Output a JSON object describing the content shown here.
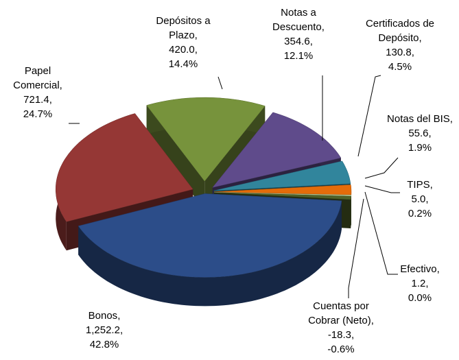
{
  "chart_data": {
    "type": "pie",
    "categories": [
      "Depósitos a Plazo",
      "Notas a Descuento",
      "Certificados de Depósito",
      "Notas del BIS",
      "TIPS",
      "Efectivo",
      "Cuentas por Cobrar (Neto)",
      "Bonos",
      "Papel Comercial"
    ],
    "values": [
      420.0,
      354.6,
      130.8,
      55.6,
      5.0,
      1.2,
      -18.3,
      1252.2,
      721.4
    ],
    "value_labels": [
      "420.0",
      "354.6",
      "130.8",
      "55.6",
      "5.0",
      "1.2",
      "-18.3",
      "1,252.2",
      "721.4"
    ],
    "percents": [
      14.4,
      12.1,
      4.5,
      1.9,
      0.2,
      0.0,
      -0.6,
      42.8,
      24.7
    ],
    "percent_labels": [
      "14.4%",
      "12.1%",
      "4.5%",
      "1.9%",
      "0.2%",
      "0.0%",
      "-0.6%",
      "42.8%",
      "24.7%"
    ],
    "label_separator": ",",
    "colors": [
      "#77933c",
      "#5f4b8b",
      "#31859c",
      "#e46c0a",
      "#c3d69b",
      "#d7e4bd",
      "#4f6228",
      "#2c4d89",
      "#953735"
    ]
  }
}
